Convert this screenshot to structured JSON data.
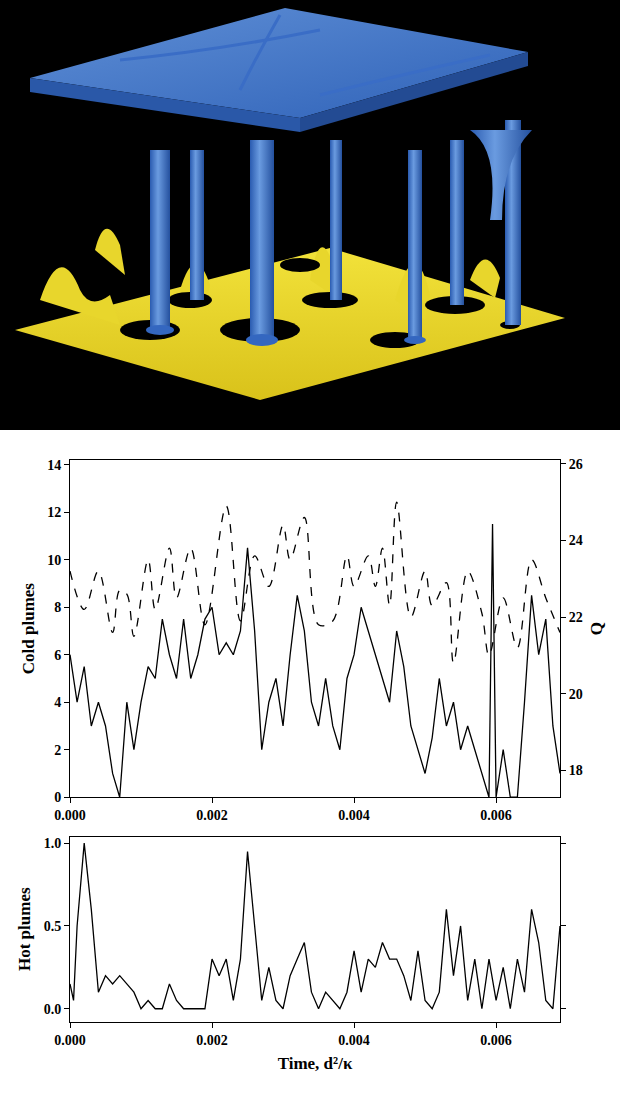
{
  "chart_data": [
    {
      "type": "line",
      "ylabel": "Cold plumes",
      "y2label": "Q",
      "xlim": [
        0,
        0.0069
      ],
      "xticks": [
        {
          "value": 0,
          "label": "0.000"
        },
        {
          "value": 0.002,
          "label": "0.002"
        },
        {
          "value": 0.004,
          "label": "0.004"
        },
        {
          "value": 0.006,
          "label": "0.006"
        }
      ],
      "ylim": [
        0,
        14.2
      ],
      "yticks": [
        0,
        2,
        4,
        6,
        8,
        10,
        12,
        14
      ],
      "y2lim": [
        17.3,
        26.1
      ],
      "y2ticks": [
        18,
        20,
        22,
        24,
        26
      ],
      "grid": false,
      "series": [
        {
          "color": "#000000",
          "line_style": "solid",
          "x": [
            0,
            0.0001,
            0.0002,
            0.0003,
            0.0004,
            0.0005,
            0.0006,
            0.0007,
            0.0008,
            0.0009,
            0.001,
            0.0011,
            0.0012,
            0.0013,
            0.0014,
            0.0015,
            0.0016,
            0.0017,
            0.0018,
            0.0019,
            0.002,
            0.0021,
            0.0022,
            0.0023,
            0.0024,
            0.0025,
            0.0026,
            0.0027,
            0.0028,
            0.0029,
            0.003,
            0.0031,
            0.0032,
            0.0033,
            0.0034,
            0.0035,
            0.0036,
            0.0037,
            0.0038,
            0.0039,
            0.004,
            0.0041,
            0.0042,
            0.0043,
            0.0044,
            0.0045,
            0.0046,
            0.0047,
            0.0048,
            0.0049,
            0.005,
            0.0051,
            0.0052,
            0.0053,
            0.0054,
            0.0055,
            0.0056,
            0.0057,
            0.0058,
            0.0059,
            0.00595,
            0.006,
            0.0061,
            0.0062,
            0.0063,
            0.0064,
            0.0065,
            0.0066,
            0.0067,
            0.0068,
            0.0069
          ],
          "values": [
            6,
            4,
            5.5,
            3,
            4,
            3,
            1,
            0,
            4,
            2,
            4,
            5.5,
            5,
            7.5,
            6,
            5,
            7.5,
            5,
            6,
            7.5,
            8,
            6,
            6.5,
            6,
            7,
            10.5,
            7,
            2,
            4,
            5,
            3,
            6,
            8.5,
            7,
            4,
            3,
            5,
            3,
            2,
            5,
            6,
            8,
            7,
            6,
            5,
            4,
            7,
            5.5,
            3,
            2,
            1,
            2.5,
            5,
            3,
            4,
            2,
            3,
            2,
            1,
            0,
            11.5,
            0,
            2,
            0,
            0,
            4,
            8.5,
            6,
            7.5,
            3,
            1
          ]
        },
        {
          "color": "#000000",
          "line_style": "dashed",
          "axis": "y2",
          "x": [
            0,
            0.0002,
            0.0004,
            0.0006,
            0.0007,
            0.0008,
            0.0009,
            0.0011,
            0.0012,
            0.0014,
            0.0015,
            0.0017,
            0.0019,
            0.0022,
            0.0024,
            0.0026,
            0.0028,
            0.003,
            0.0031,
            0.0033,
            0.0035,
            0.0037,
            0.0039,
            0.004,
            0.0042,
            0.0043,
            0.0044,
            0.0045,
            0.0046,
            0.0048,
            0.005,
            0.0051,
            0.0053,
            0.0054,
            0.0056,
            0.0058,
            0.0059,
            0.0061,
            0.0063,
            0.0065,
            0.0067,
            0.0069
          ],
          "values": [
            23.2,
            22.2,
            23.2,
            21.6,
            22.7,
            22.6,
            21.5,
            23.5,
            22.2,
            23.8,
            22.5,
            23.8,
            21.8,
            24.9,
            21.9,
            23.6,
            22.8,
            24.4,
            23.5,
            24.6,
            21.8,
            21.9,
            23.6,
            22.8,
            23.6,
            22.8,
            23.8,
            22.3,
            25.0,
            22.0,
            23.2,
            22.3,
            22.9,
            20.8,
            23.2,
            22.1,
            21.0,
            22.5,
            21.2,
            23.5,
            22.5,
            21.6
          ]
        }
      ]
    },
    {
      "type": "line",
      "ylabel": "Hot plumes",
      "xlabel": "Time, d²/κ",
      "xlim": [
        0,
        0.0069
      ],
      "xticks": [
        {
          "value": 0,
          "label": "0.000"
        },
        {
          "value": 0.002,
          "label": "0.002"
        },
        {
          "value": 0.004,
          "label": "0.004"
        },
        {
          "value": 0.006,
          "label": "0.006"
        }
      ],
      "ylim": [
        -0.08,
        1.04
      ],
      "yticks": [
        {
          "value": 0,
          "label": "0.0"
        },
        {
          "value": 0.5,
          "label": "0.5"
        },
        {
          "value": 1,
          "label": "1.0"
        }
      ],
      "grid": false,
      "series": [
        {
          "color": "#000000",
          "line_style": "solid",
          "x": [
            0,
            5e-05,
            0.0001,
            0.0002,
            0.0003,
            0.0004,
            0.0005,
            0.0006,
            0.0007,
            0.0008,
            0.0009,
            0.001,
            0.0011,
            0.0012,
            0.0013,
            0.0014,
            0.0015,
            0.0016,
            0.0017,
            0.0018,
            0.0019,
            0.002,
            0.0021,
            0.0022,
            0.0023,
            0.0024,
            0.0025,
            0.0026,
            0.0027,
            0.0028,
            0.0029,
            0.003,
            0.0031,
            0.0032,
            0.0033,
            0.0034,
            0.0035,
            0.0036,
            0.0037,
            0.0038,
            0.0039,
            0.004,
            0.0041,
            0.0042,
            0.0043,
            0.0044,
            0.0045,
            0.0046,
            0.0047,
            0.0048,
            0.0049,
            0.005,
            0.0051,
            0.0052,
            0.0053,
            0.0054,
            0.0055,
            0.0056,
            0.0057,
            0.0058,
            0.0059,
            0.006,
            0.0061,
            0.0062,
            0.0063,
            0.0064,
            0.0065,
            0.0066,
            0.0067,
            0.0068,
            0.0069
          ],
          "values": [
            0.15,
            0.05,
            0.5,
            1.0,
            0.6,
            0.1,
            0.2,
            0.15,
            0.2,
            0.15,
            0.1,
            0.0,
            0.05,
            0.0,
            0.0,
            0.15,
            0.05,
            0.0,
            0.0,
            0.0,
            0.0,
            0.3,
            0.2,
            0.3,
            0.05,
            0.3,
            0.95,
            0.5,
            0.05,
            0.25,
            0.05,
            0.0,
            0.2,
            0.3,
            0.4,
            0.1,
            0.0,
            0.1,
            0.05,
            0.0,
            0.1,
            0.35,
            0.1,
            0.3,
            0.25,
            0.4,
            0.3,
            0.3,
            0.2,
            0.05,
            0.35,
            0.05,
            0.0,
            0.1,
            0.6,
            0.2,
            0.5,
            0.05,
            0.3,
            0.0,
            0.3,
            0.05,
            0.25,
            0.0,
            0.3,
            0.1,
            0.6,
            0.4,
            0.05,
            0.0,
            0.5
          ]
        }
      ]
    }
  ]
}
